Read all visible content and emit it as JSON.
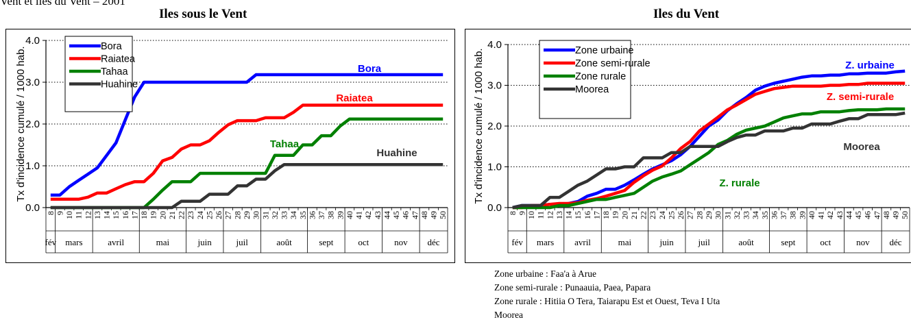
{
  "page_heading_fragment": "Vent et îles du Vent – 2001",
  "notes": [
    "Zone urbaine : Faa'a à Arue",
    "Zone semi-rurale : Punaauia, Paea, Papara",
    "Zone rurale : Hitiia O Tera, Taiarapu Est et Ouest, Teva I Uta",
    "Moorea"
  ],
  "chart_data": [
    {
      "type": "line",
      "title": "Iles sous le Vent",
      "ylabel": "Tx d'incidence cumulé / 1000 hab.",
      "ylim": [
        0,
        4
      ],
      "yticks": [
        "0.0",
        "1.0",
        "2.0",
        "3.0",
        "4.0"
      ],
      "x": [
        "8",
        "9",
        "10",
        "11",
        "12",
        "13",
        "14",
        "15",
        "16",
        "17",
        "18",
        "19",
        "20",
        "21",
        "22",
        "23",
        "24",
        "25",
        "26",
        "27",
        "28",
        "29",
        "30",
        "31",
        "32",
        "33",
        "34",
        "35",
        "36",
        "37",
        "38",
        "39",
        "40",
        "41",
        "42",
        "43",
        "44",
        "45",
        "46",
        "47",
        "48",
        "49",
        "50"
      ],
      "months": [
        {
          "label": "fév",
          "weeks": [
            "8"
          ]
        },
        {
          "label": "mars",
          "weeks": [
            "9",
            "10",
            "11",
            "12"
          ]
        },
        {
          "label": "avril",
          "weeks": [
            "13",
            "14",
            "15",
            "16",
            "17"
          ]
        },
        {
          "label": "mai",
          "weeks": [
            "18",
            "19",
            "20",
            "21",
            "22"
          ]
        },
        {
          "label": "juin",
          "weeks": [
            "23",
            "24",
            "25",
            "26"
          ]
        },
        {
          "label": "juil",
          "weeks": [
            "27",
            "28",
            "29",
            "30"
          ]
        },
        {
          "label": "août",
          "weeks": [
            "31",
            "32",
            "33",
            "34",
            "35"
          ]
        },
        {
          "label": "sept",
          "weeks": [
            "36",
            "37",
            "38",
            "39"
          ]
        },
        {
          "label": "oct",
          "weeks": [
            "40",
            "41",
            "42",
            "43"
          ]
        },
        {
          "label": "nov",
          "weeks": [
            "44",
            "45",
            "46",
            "47"
          ]
        },
        {
          "label": "déc",
          "weeks": [
            "48",
            "49",
            "50"
          ]
        }
      ],
      "grid": "horizontal dotted",
      "legend_position": "top-left",
      "series": [
        {
          "name": "Bora",
          "color": "#0000ff",
          "values": [
            0.3,
            0.3,
            0.5,
            0.65,
            0.8,
            0.95,
            1.25,
            1.55,
            2.1,
            2.65,
            3.0,
            3.0,
            3.0,
            3.0,
            3.0,
            3.0,
            3.0,
            3.0,
            3.0,
            3.0,
            3.0,
            3.0,
            3.18,
            3.18,
            3.18,
            3.18,
            3.18,
            3.18,
            3.18,
            3.18,
            3.18,
            3.18,
            3.18,
            3.18,
            3.18,
            3.18,
            3.18,
            3.18,
            3.18,
            3.18,
            3.18,
            3.18,
            3.18
          ]
        },
        {
          "name": "Raiatea",
          "color": "#ff0000",
          "values": [
            0.2,
            0.2,
            0.2,
            0.2,
            0.25,
            0.35,
            0.35,
            0.45,
            0.55,
            0.62,
            0.62,
            0.82,
            1.12,
            1.2,
            1.4,
            1.5,
            1.5,
            1.6,
            1.8,
            1.98,
            2.08,
            2.08,
            2.08,
            2.15,
            2.15,
            2.15,
            2.28,
            2.45,
            2.45,
            2.45,
            2.45,
            2.45,
            2.45,
            2.45,
            2.45,
            2.45,
            2.45,
            2.45,
            2.45,
            2.45,
            2.45,
            2.45,
            2.45
          ]
        },
        {
          "name": "Tahaa",
          "color": "#008000",
          "values": [
            0,
            0,
            0,
            0,
            0,
            0,
            0,
            0,
            0,
            0,
            0,
            0.2,
            0.42,
            0.62,
            0.62,
            0.62,
            0.82,
            0.82,
            0.82,
            0.82,
            0.82,
            0.82,
            0.82,
            0.82,
            1.25,
            1.25,
            1.25,
            1.5,
            1.5,
            1.72,
            1.72,
            1.95,
            2.12,
            2.12,
            2.12,
            2.12,
            2.12,
            2.12,
            2.12,
            2.12,
            2.12,
            2.12,
            2.12
          ]
        },
        {
          "name": "Huahine",
          "color": "#333333",
          "values": [
            0,
            0,
            0,
            0,
            0,
            0,
            0,
            0,
            0,
            0,
            0,
            0,
            0,
            0,
            0.15,
            0.15,
            0.15,
            0.32,
            0.32,
            0.32,
            0.52,
            0.52,
            0.68,
            0.68,
            0.88,
            1.03,
            1.03,
            1.03,
            1.03,
            1.03,
            1.03,
            1.03,
            1.03,
            1.03,
            1.03,
            1.03,
            1.03,
            1.03,
            1.03,
            1.03,
            1.03,
            1.03,
            1.03
          ]
        }
      ],
      "annotations": [
        {
          "text": "Bora",
          "color": "#0000ff"
        },
        {
          "text": "Raiatea",
          "color": "#ff0000"
        },
        {
          "text": "Tahaa",
          "color": "#008000"
        },
        {
          "text": "Huahine",
          "color": "#333333"
        }
      ]
    },
    {
      "type": "line",
      "title": "Iles du Vent",
      "ylabel": "Tx d'incidence cumulé / 1000 hab.",
      "ylim": [
        0,
        4
      ],
      "yticks": [
        "0.0",
        "1.0",
        "2.0",
        "3.0",
        "4.0"
      ],
      "x": [
        "8",
        "9",
        "10",
        "11",
        "12",
        "13",
        "14",
        "15",
        "16",
        "17",
        "18",
        "19",
        "20",
        "21",
        "22",
        "23",
        "24",
        "25",
        "26",
        "27",
        "28",
        "29",
        "30",
        "31",
        "32",
        "33",
        "34",
        "35",
        "36",
        "37",
        "38",
        "39",
        "40",
        "41",
        "42",
        "43",
        "44",
        "45",
        "46",
        "47",
        "48",
        "49",
        "50"
      ],
      "months": [
        {
          "label": "fév",
          "weeks": [
            "8",
            "9"
          ]
        },
        {
          "label": "mars",
          "weeks": [
            "10",
            "11",
            "12",
            "13"
          ]
        },
        {
          "label": "avril",
          "weeks": [
            "14",
            "15",
            "16",
            "17"
          ]
        },
        {
          "label": "mai",
          "weeks": [
            "18",
            "19",
            "20",
            "21",
            "22"
          ]
        },
        {
          "label": "juin",
          "weeks": [
            "23",
            "24",
            "25",
            "26"
          ]
        },
        {
          "label": "juil",
          "weeks": [
            "27",
            "28",
            "29",
            "30"
          ]
        },
        {
          "label": "août",
          "weeks": [
            "31",
            "32",
            "33",
            "34",
            "35"
          ]
        },
        {
          "label": "sept",
          "weeks": [
            "36",
            "37",
            "38",
            "39"
          ]
        },
        {
          "label": "oct",
          "weeks": [
            "40",
            "41",
            "42",
            "43"
          ]
        },
        {
          "label": "nov",
          "weeks": [
            "44",
            "45",
            "46",
            "47"
          ]
        },
        {
          "label": "déc",
          "weeks": [
            "48",
            "49",
            "50"
          ]
        }
      ],
      "grid": "horizontal dotted",
      "legend_position": "top-left",
      "series": [
        {
          "name": "Zone urbaine",
          "color": "#0000ff",
          "values": [
            0,
            0.05,
            0.05,
            0.05,
            0.08,
            0.08,
            0.1,
            0.15,
            0.28,
            0.35,
            0.45,
            0.45,
            0.55,
            0.68,
            0.82,
            0.95,
            1.05,
            1.15,
            1.3,
            1.5,
            1.75,
            2.0,
            2.15,
            2.38,
            2.55,
            2.7,
            2.88,
            2.98,
            3.05,
            3.1,
            3.15,
            3.2,
            3.23,
            3.23,
            3.25,
            3.25,
            3.28,
            3.28,
            3.3,
            3.3,
            3.3,
            3.33,
            3.35
          ]
        },
        {
          "name": "Zone semi-rurale",
          "color": "#ff0000",
          "values": [
            0,
            0,
            0.05,
            0.05,
            0.08,
            0.1,
            0.1,
            0.12,
            0.18,
            0.22,
            0.28,
            0.35,
            0.42,
            0.62,
            0.78,
            0.92,
            1.02,
            1.22,
            1.45,
            1.62,
            1.88,
            2.05,
            2.22,
            2.4,
            2.52,
            2.65,
            2.78,
            2.85,
            2.92,
            2.95,
            2.98,
            2.98,
            2.98,
            2.98,
            3.0,
            3.0,
            3.02,
            3.02,
            3.05,
            3.05,
            3.05,
            3.05,
            3.05
          ]
        },
        {
          "name": "Zone rurale",
          "color": "#008000",
          "values": [
            0,
            0,
            0,
            0,
            0,
            0.05,
            0.05,
            0.1,
            0.15,
            0.2,
            0.2,
            0.25,
            0.3,
            0.35,
            0.5,
            0.65,
            0.75,
            0.82,
            0.9,
            1.05,
            1.2,
            1.35,
            1.55,
            1.65,
            1.8,
            1.9,
            1.95,
            2.0,
            2.1,
            2.2,
            2.25,
            2.3,
            2.3,
            2.35,
            2.35,
            2.35,
            2.38,
            2.4,
            2.4,
            2.4,
            2.42,
            2.42,
            2.42
          ]
        },
        {
          "name": "Moorea",
          "color": "#333333",
          "values": [
            0,
            0.05,
            0.05,
            0.05,
            0.25,
            0.25,
            0.4,
            0.55,
            0.65,
            0.8,
            0.95,
            0.95,
            1.0,
            1.0,
            1.22,
            1.22,
            1.22,
            1.35,
            1.35,
            1.5,
            1.5,
            1.5,
            1.5,
            1.62,
            1.72,
            1.78,
            1.78,
            1.88,
            1.88,
            1.88,
            1.95,
            1.95,
            2.05,
            2.05,
            2.05,
            2.12,
            2.18,
            2.18,
            2.28,
            2.28,
            2.28,
            2.28,
            2.32
          ]
        }
      ],
      "annotations": [
        {
          "text": "Z. urbaine",
          "color": "#0000ff"
        },
        {
          "text": "Z. semi-rurale",
          "color": "#ff0000"
        },
        {
          "text": "Moorea",
          "color": "#333333"
        },
        {
          "text": "Z. rurale",
          "color": "#008000"
        }
      ]
    }
  ]
}
